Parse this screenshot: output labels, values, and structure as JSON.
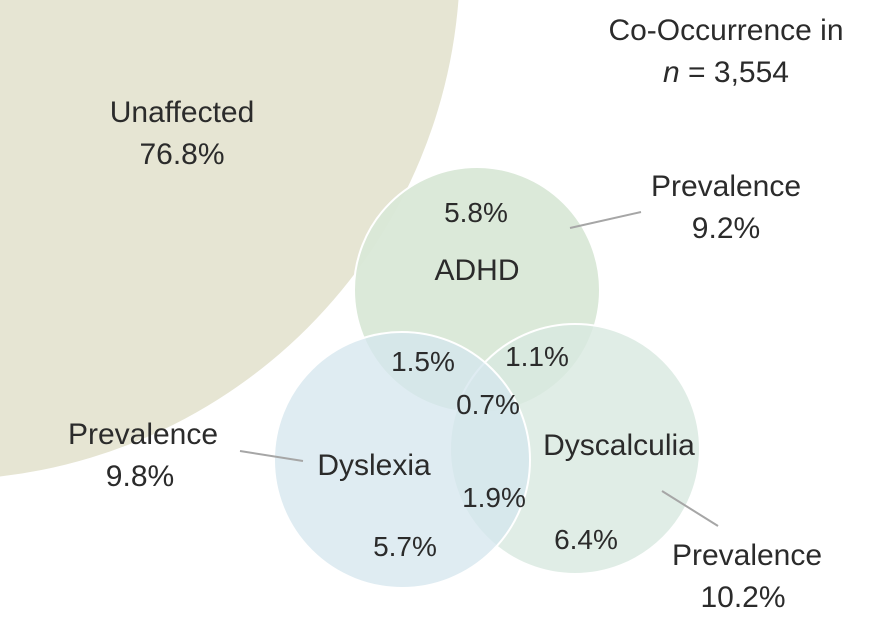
{
  "title": {
    "line1": "Co-Occurrence in",
    "line2_var": "n",
    "line2_rest": " = 3,554"
  },
  "unaffected": {
    "label": "Unaffected",
    "value": "76.8%"
  },
  "sets": {
    "adhd": {
      "label": "ADHD",
      "only": "5.8%",
      "prevalence_label": "Prevalence",
      "prevalence": "9.2%"
    },
    "dyslexia": {
      "label": "Dyslexia",
      "only": "5.7%",
      "prevalence_label": "Prevalence",
      "prevalence": "9.8%"
    },
    "dyscalculia": {
      "label": "Dyscalculia",
      "only": "6.4%",
      "prevalence_label": "Prevalence",
      "prevalence": "10.2%"
    }
  },
  "overlaps": {
    "adhd_dyslexia": "1.5%",
    "adhd_dyscalculia": "1.1%",
    "dyslexia_dyscalculia": "1.9%",
    "all_three": "0.7%"
  },
  "colors": {
    "unaffected": "#e6e5d3",
    "adhd": "#d9e8d7",
    "dyslexia": "#d4e5ee",
    "dyscalculia": "#d8e8e0",
    "leader": "#a6a6a6",
    "text": "#2b2b2b"
  }
}
